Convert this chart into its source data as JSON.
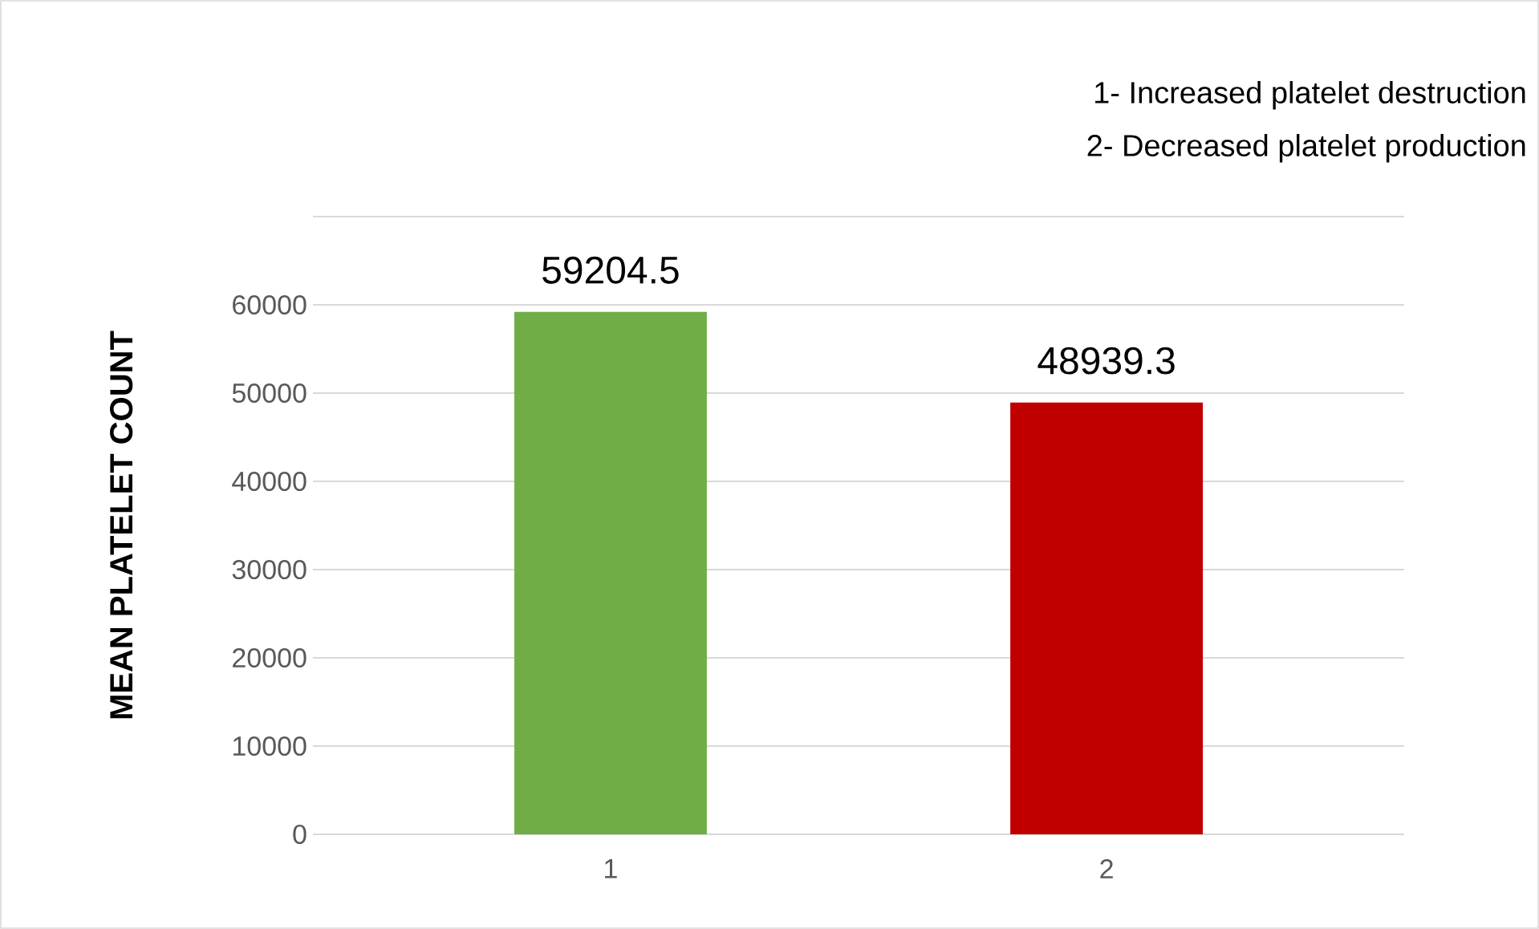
{
  "chart_data": {
    "type": "bar",
    "categories": [
      "1",
      "2"
    ],
    "values": [
      59204.5,
      48939.3
    ],
    "colors": [
      "#70ad47",
      "#c00000"
    ],
    "ylabel": "MEAN PLATELET COUNT",
    "ylim": [
      0,
      70000
    ],
    "yticks": [
      0,
      10000,
      20000,
      30000,
      40000,
      50000,
      60000,
      {
        "value": 70000,
        "label": null
      }
    ],
    "grid": "y",
    "data_labels": true,
    "annotations": [
      "1- Increased platelet destruction",
      "2- Decreased platelet production"
    ]
  }
}
